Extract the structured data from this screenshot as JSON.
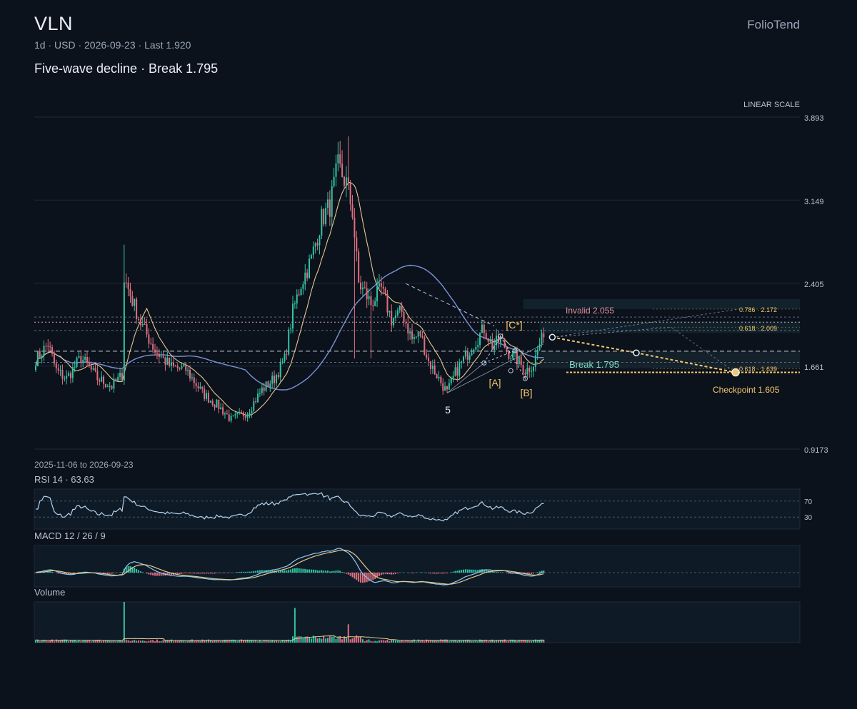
{
  "header": {
    "ticker": "VLN",
    "meta": "1d · USD · 2026-09-23 · Last 1.920",
    "subtitle": "Five-wave decline · Break 1.795",
    "brand": "FolioTend"
  },
  "chart_data": {
    "type": "candlestick",
    "symbol": "VLN",
    "interval": "1d",
    "currency": "USD",
    "date_range": "2025-11-06 to 2026-09-23",
    "last": 1.92,
    "scale_label": "LINEAR SCALE",
    "y_ticks": [
      "3.893",
      "3.149",
      "2.405",
      "1.661",
      "0.9173"
    ],
    "ylim": [
      0.9173,
      3.893
    ],
    "price_anchors": [
      [
        0,
        1.72
      ],
      [
        6,
        1.86
      ],
      [
        10,
        1.62
      ],
      [
        15,
        1.55
      ],
      [
        22,
        1.74
      ],
      [
        30,
        1.55
      ],
      [
        37,
        1.48
      ],
      [
        42,
        1.58
      ],
      [
        43,
        2.45
      ],
      [
        46,
        2.3
      ],
      [
        51,
        2.05
      ],
      [
        58,
        1.8
      ],
      [
        66,
        1.65
      ],
      [
        73,
        1.63
      ],
      [
        81,
        1.42
      ],
      [
        89,
        1.3
      ],
      [
        95,
        1.18
      ],
      [
        103,
        1.25
      ],
      [
        110,
        1.45
      ],
      [
        116,
        1.55
      ],
      [
        121,
        1.72
      ],
      [
        125,
        2.15
      ],
      [
        129,
        2.4
      ],
      [
        134,
        2.62
      ],
      [
        139,
        2.98
      ],
      [
        143,
        3.1
      ],
      [
        147,
        3.45
      ],
      [
        151,
        3.3
      ],
      [
        154,
        3.05
      ],
      [
        157,
        2.4
      ],
      [
        160,
        2.32
      ],
      [
        163,
        2.22
      ],
      [
        168,
        2.35
      ],
      [
        173,
        2.08
      ],
      [
        178,
        2.15
      ],
      [
        183,
        1.9
      ],
      [
        187,
        1.95
      ],
      [
        191,
        1.7
      ],
      [
        195,
        1.58
      ],
      [
        200,
        1.42
      ],
      [
        204,
        1.6
      ],
      [
        208,
        1.72
      ],
      [
        213,
        1.86
      ],
      [
        218,
        2.0
      ],
      [
        222,
        1.84
      ],
      [
        226,
        1.9
      ],
      [
        230,
        1.78
      ],
      [
        234,
        1.72
      ],
      [
        238,
        1.62
      ],
      [
        242,
        1.68
      ],
      [
        245,
        1.86
      ],
      [
        247,
        1.92
      ]
    ],
    "price_spikes": [
      [
        43,
        2.75
      ],
      [
        152,
        3.72
      ],
      [
        155,
        1.73
      ],
      [
        163,
        1.73
      ]
    ],
    "volume_spikes": [
      [
        43,
        1.0
      ],
      [
        126,
        0.85
      ],
      [
        152,
        0.45
      ]
    ],
    "overlays": [
      {
        "name": "short_ma",
        "color": "#e4c98e"
      },
      {
        "name": "long_ma",
        "color": "#7b93d6"
      }
    ],
    "levels": [
      {
        "name": "Invalid",
        "value": 2.055,
        "label": "Invalid 2.055",
        "color": "#e38f9a"
      },
      {
        "name": "Break",
        "value": 1.795,
        "label": "Break 1.795",
        "color": "#7fe0c6"
      },
      {
        "name": "Checkpoint",
        "value": 1.605,
        "label": "Checkpoint 1.605",
        "color": "#f2c76b"
      }
    ],
    "extra_dashed_levels": [
      2.1,
      1.98,
      1.695
    ],
    "fib_targets": [
      {
        "ratio": "0.786",
        "value": 2.172,
        "label": "0.786 · 2.172"
      },
      {
        "ratio": "0.618",
        "value": 2.009,
        "label": "0.618 · 2.009"
      },
      {
        "ratio": "0.618",
        "value": 1.639,
        "label": "0.618 · 1.639"
      }
    ],
    "wave_labels": [
      {
        "text": "5",
        "bar": 200,
        "price": 1.42,
        "color": "#e9eef5"
      },
      {
        "text": "[A]",
        "bar": 218,
        "price": 1.69,
        "color": "#f2c76b"
      },
      {
        "text": "[B]",
        "bar": 238,
        "price": 1.58,
        "color": "#f2c76b"
      },
      {
        "text": "[C*]",
        "bar": 229,
        "price": 2.03,
        "color": "#f2c76b"
      }
    ],
    "projection": {
      "from_price": 1.92,
      "mid_price": 1.78,
      "to_price": 1.605,
      "color": "#f2c76b"
    },
    "rsi": {
      "label": "RSI 14 · 63.63",
      "period": 14,
      "value": 63.63,
      "levels": [
        "70",
        "30"
      ]
    },
    "macd": {
      "label": "MACD 12 / 26 / 9",
      "fast": 12,
      "slow": 26,
      "signal": 9
    },
    "volume": {
      "label": "Volume"
    },
    "colors": {
      "up": "#33c4a4",
      "down": "#e0707f",
      "grid": "#1d2a3a",
      "axis_text": "#b8c3d1",
      "panel_bg": "#0f1a27"
    }
  }
}
